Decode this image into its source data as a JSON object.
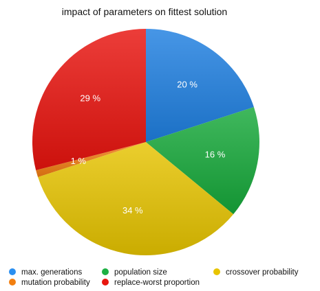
{
  "chart_data": {
    "type": "pie",
    "title": "impact of parameters on fittest solution",
    "categories": [
      "max. generations",
      "population size",
      "crossover probability",
      "mutation probability",
      "replace-worst proportion"
    ],
    "values": [
      20,
      16,
      34,
      1,
      29
    ],
    "value_labels": [
      "20 %",
      "16 %",
      "34 %",
      "1 %",
      "29 %"
    ],
    "colors": [
      "#1f7fe0",
      "#16a83a",
      "#e6c300",
      "#f07d12",
      "#e8130e"
    ],
    "slice_order": [
      0,
      1,
      2,
      3,
      4
    ],
    "legend_position": "bottom"
  }
}
